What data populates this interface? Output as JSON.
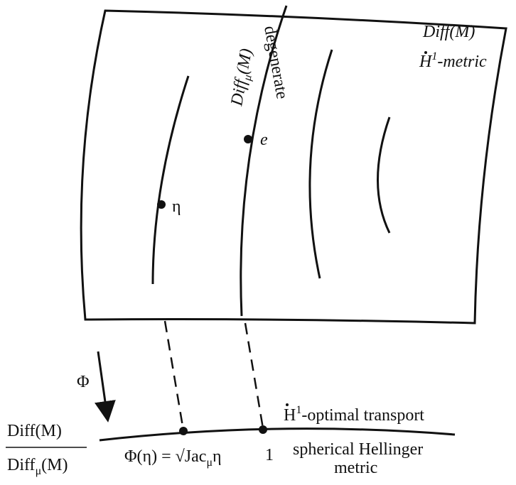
{
  "top_right": {
    "space": "Diff(M)",
    "metric_base": "H",
    "metric_sup": "1",
    "metric_rest": "-metric"
  },
  "subgroup": {
    "base": "Diff",
    "sub": "μ",
    "rest": "(M)"
  },
  "degenerate": "degenerate",
  "point_e": "e",
  "point_eta": "η",
  "map": "Φ",
  "bottom": {
    "transport_base": "H",
    "transport_sup": "1",
    "transport_rest": "-optimal transport",
    "hellinger_line1": "spherical Hellinger",
    "hellinger_line2": "metric",
    "phi_eq": "Φ(η) = √Jac",
    "phi_sub": "μ",
    "phi_rest": "η",
    "one": "1"
  },
  "quotient": {
    "numerator": "Diff(M)",
    "den_base": "Diff",
    "den_sub": "μ",
    "den_rest": "(M)"
  }
}
